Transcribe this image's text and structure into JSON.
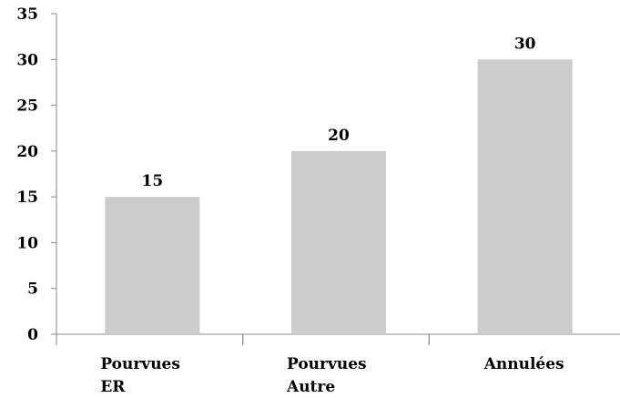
{
  "chart_data": {
    "type": "bar",
    "categories": [
      [
        "Pourvues",
        "ER"
      ],
      [
        "Pourvues",
        "Autre"
      ],
      [
        "Annulées"
      ]
    ],
    "values": [
      15,
      20,
      30
    ],
    "data_labels": [
      "15",
      "20",
      "30"
    ],
    "yticks": [
      0,
      5,
      10,
      15,
      20,
      25,
      30,
      35
    ],
    "ylim": [
      0,
      35
    ],
    "title": "",
    "xlabel": "",
    "ylabel": "",
    "grid": false,
    "legend": "none",
    "bar_color": "#cccccc",
    "axis_color": "#888888"
  }
}
